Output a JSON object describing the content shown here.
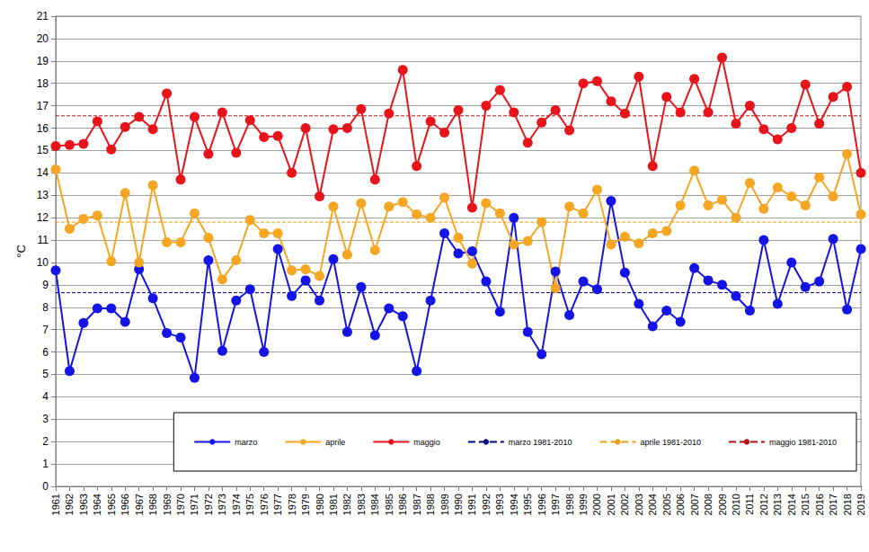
{
  "chart_data": {
    "type": "line",
    "ylabel": "°C",
    "categories": [
      "1961",
      "1962",
      "1963",
      "1964",
      "1965",
      "1966",
      "1967",
      "1968",
      "1969",
      "1970",
      "1971",
      "1972",
      "1973",
      "1974",
      "1975",
      "1976",
      "1977",
      "1978",
      "1979",
      "1980",
      "1981",
      "1982",
      "1983",
      "1984",
      "1985",
      "1986",
      "1987",
      "1988",
      "1989",
      "1990",
      "1991",
      "1992",
      "1993",
      "1994",
      "1995",
      "1996",
      "1997",
      "1998",
      "1999",
      "2000",
      "2001",
      "2002",
      "2003",
      "2004",
      "2005",
      "2006",
      "2007",
      "2008",
      "2009",
      "2010",
      "2011",
      "2012",
      "2013",
      "2014",
      "2015",
      "2016",
      "2017",
      "2018",
      "2019"
    ],
    "series": [
      {
        "name": "marzo",
        "color": "#1414e6",
        "marker": "circle",
        "line_style": "solid",
        "values": [
          9.65,
          5.15,
          7.3,
          7.95,
          7.95,
          7.35,
          9.7,
          8.4,
          6.85,
          6.65,
          4.85,
          10.1,
          6.05,
          8.3,
          8.8,
          6.0,
          10.6,
          8.5,
          9.2,
          8.3,
          10.15,
          6.9,
          8.9,
          6.75,
          7.95,
          7.6,
          5.15,
          8.3,
          11.3,
          10.4,
          10.5,
          9.15,
          7.8,
          12.0,
          6.9,
          5.9,
          9.6,
          7.65,
          9.15,
          8.8,
          12.75,
          9.55,
          8.15,
          7.15,
          7.85,
          7.35,
          9.75,
          9.2,
          9.0,
          8.5,
          7.85,
          11.0,
          8.15,
          10.0,
          8.9,
          9.15,
          11.05,
          7.9,
          10.6
        ]
      },
      {
        "name": "aprile",
        "color": "#f5a623",
        "marker": "circle",
        "line_style": "solid",
        "values": [
          14.15,
          11.5,
          11.95,
          12.1,
          10.05,
          13.1,
          10.0,
          13.45,
          10.9,
          10.9,
          12.2,
          11.1,
          9.25,
          10.1,
          11.9,
          11.3,
          11.3,
          9.65,
          9.7,
          9.4,
          12.5,
          10.35,
          12.65,
          10.55,
          12.5,
          12.7,
          12.15,
          12.0,
          12.9,
          11.1,
          9.95,
          12.65,
          12.2,
          10.8,
          10.95,
          11.8,
          8.85,
          12.5,
          12.2,
          13.25,
          10.8,
          11.15,
          10.85,
          11.3,
          11.4,
          12.55,
          14.1,
          12.55,
          12.8,
          12.0,
          13.55,
          12.4,
          13.35,
          12.95,
          12.55,
          13.8,
          12.95,
          14.85,
          12.15
        ]
      },
      {
        "name": "maggio",
        "color": "#e8141b",
        "marker": "circle",
        "line_style": "solid",
        "values": [
          15.2,
          15.25,
          15.3,
          16.3,
          15.05,
          16.05,
          16.5,
          15.95,
          17.55,
          13.7,
          16.5,
          14.85,
          16.7,
          14.9,
          16.35,
          15.6,
          15.65,
          14.0,
          16.0,
          12.95,
          15.95,
          16.0,
          16.85,
          13.7,
          16.65,
          18.6,
          14.3,
          16.3,
          15.8,
          16.8,
          12.45,
          17.0,
          17.7,
          16.7,
          15.35,
          16.25,
          16.8,
          15.9,
          18.0,
          18.1,
          17.2,
          16.65,
          18.3,
          14.3,
          17.4,
          16.7,
          18.2,
          16.7,
          19.15,
          16.2,
          17.0,
          15.95,
          15.5,
          16.0,
          17.95,
          16.2,
          17.4,
          17.85,
          14.0
        ]
      },
      {
        "name": "marzo 1981-2010",
        "color": "#000080",
        "marker": "none",
        "line_style": "dashed",
        "values": [
          8.65,
          8.65,
          8.65,
          8.65,
          8.65,
          8.65,
          8.65,
          8.65,
          8.65,
          8.65,
          8.65,
          8.65,
          8.65,
          8.65,
          8.65,
          8.65,
          8.65,
          8.65,
          8.65,
          8.65,
          8.65,
          8.65,
          8.65,
          8.65,
          8.65,
          8.65,
          8.65,
          8.65,
          8.65,
          8.65,
          8.65,
          8.65,
          8.65,
          8.65,
          8.65,
          8.65,
          8.65,
          8.65,
          8.65,
          8.65,
          8.65,
          8.65,
          8.65,
          8.65,
          8.65,
          8.65,
          8.65,
          8.65,
          8.65,
          8.65,
          8.65,
          8.65,
          8.65,
          8.65,
          8.65,
          8.65,
          8.65,
          8.65,
          8.65
        ]
      },
      {
        "name": "aprile 1981-2010",
        "color": "#e6a010",
        "marker": "none",
        "line_style": "dashed",
        "values": [
          11.8,
          11.8,
          11.8,
          11.8,
          11.8,
          11.8,
          11.8,
          11.8,
          11.8,
          11.8,
          11.8,
          11.8,
          11.8,
          11.8,
          11.8,
          11.8,
          11.8,
          11.8,
          11.8,
          11.8,
          11.8,
          11.8,
          11.8,
          11.8,
          11.8,
          11.8,
          11.8,
          11.8,
          11.8,
          11.8,
          11.8,
          11.8,
          11.8,
          11.8,
          11.8,
          11.8,
          11.8,
          11.8,
          11.8,
          11.8,
          11.8,
          11.8,
          11.8,
          11.8,
          11.8,
          11.8,
          11.8,
          11.8,
          11.8,
          11.8,
          11.8,
          11.8,
          11.8,
          11.8,
          11.8,
          11.8,
          11.8,
          11.8,
          11.8
        ]
      },
      {
        "name": "maggio 1981-2010",
        "color": "#b01010",
        "marker": "none",
        "line_style": "dashed",
        "values": [
          16.55,
          16.55,
          16.55,
          16.55,
          16.55,
          16.55,
          16.55,
          16.55,
          16.55,
          16.55,
          16.55,
          16.55,
          16.55,
          16.55,
          16.55,
          16.55,
          16.55,
          16.55,
          16.55,
          16.55,
          16.55,
          16.55,
          16.55,
          16.55,
          16.55,
          16.55,
          16.55,
          16.55,
          16.55,
          16.55,
          16.55,
          16.55,
          16.55,
          16.55,
          16.55,
          16.55,
          16.55,
          16.55,
          16.55,
          16.55,
          16.55,
          16.55,
          16.55,
          16.55,
          16.55,
          16.55,
          16.55,
          16.55,
          16.55,
          16.55,
          16.55,
          16.55,
          16.55,
          16.55,
          16.55,
          16.55,
          16.55,
          16.55,
          16.55
        ]
      }
    ],
    "ylim": [
      0,
      21
    ],
    "yticks": [
      0,
      1,
      2,
      3,
      4,
      5,
      6,
      7,
      8,
      9,
      10,
      11,
      12,
      13,
      14,
      15,
      16,
      17,
      18,
      19,
      20,
      21
    ],
    "grid": true,
    "legend": "lower right"
  }
}
